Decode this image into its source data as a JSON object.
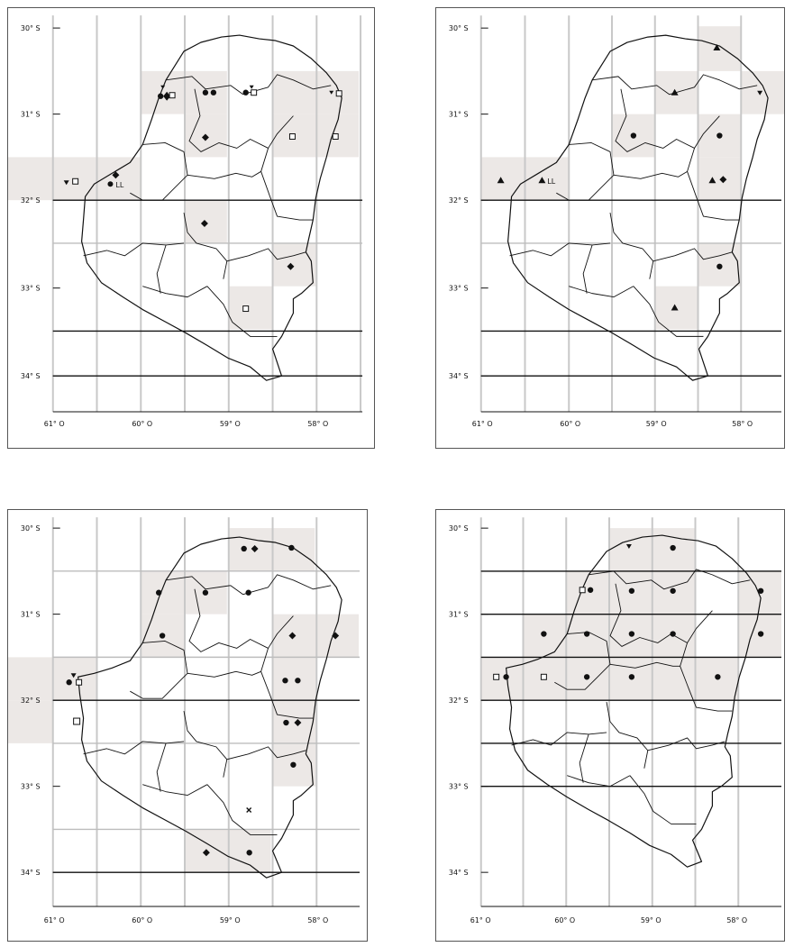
{
  "figure": {
    "panels": [
      {
        "id": "map-1",
        "lat_ticks": [
          "30° S",
          "31° S",
          "32° S",
          "33° S",
          "34° S"
        ],
        "lon_ticks": [
          "61° O",
          "60° O",
          "59° O",
          "58° O"
        ],
        "extra_label": "LL"
      },
      {
        "id": "map-2",
        "lat_ticks": [
          "30° S",
          "31° S",
          "32° S",
          "33° S",
          "34° S"
        ],
        "lon_ticks": [
          "61° O",
          "60° O",
          "59° O",
          "58° O"
        ],
        "extra_label": "LL"
      },
      {
        "id": "map-3",
        "lat_ticks": [
          "30° S",
          "31° S",
          "32° S",
          "33° S",
          "34° S"
        ],
        "lon_ticks": [
          "61° O",
          "60° O",
          "59° O",
          "58° O"
        ],
        "extra_label": ""
      },
      {
        "id": "map-4",
        "lat_ticks": [
          "30° S",
          "31° S",
          "32° S",
          "33° S",
          "34° S"
        ],
        "lon_ticks": [
          "61° O",
          "60° O",
          "59° O",
          "58° O"
        ],
        "extra_label": ""
      }
    ],
    "colors": {
      "line": "#111111",
      "grid": "#c8c8c8",
      "highlight_cell": "#ece8e6"
    },
    "symbols": [
      "filled-circle",
      "filled-diamond",
      "filled-triangle",
      "hollow-square",
      "inverted-triangle",
      "cross"
    ]
  }
}
